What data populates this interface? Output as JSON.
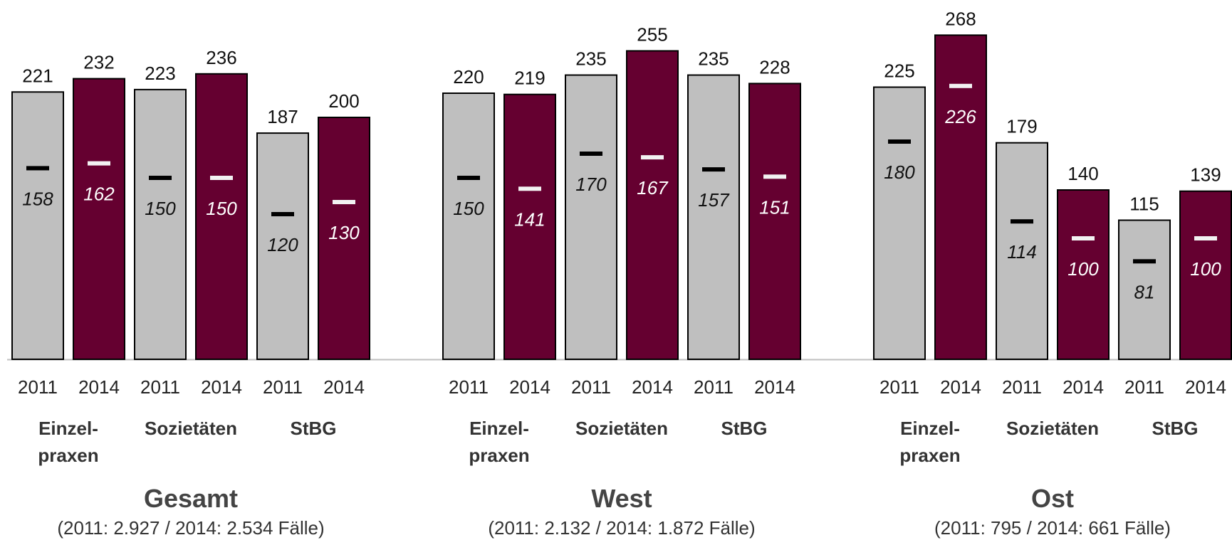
{
  "colors": {
    "y2011": "#bfbfbf",
    "y2014": "#650030",
    "marker_on_2011": "#000000",
    "marker_on_2014": "#f2f2f2",
    "bar_outline": "#000000",
    "baseline": "#bfbfbf"
  },
  "chart_data": {
    "type": "bar",
    "ylim": [
      0,
      280
    ],
    "grid": false,
    "legend": "none",
    "note": "Bar height = printed total value; horizontal dash with italic label = second printed value inside each bar",
    "panels": [
      {
        "title": "Gesamt",
        "subtitle": "(2011: 2.927 / 2014: 2.534 Fälle)",
        "groups": [
          {
            "label": [
              "Einzel-",
              "praxen"
            ],
            "bars": [
              {
                "year": "2011",
                "value": 221,
                "inner": 158
              },
              {
                "year": "2014",
                "value": 232,
                "inner": 162
              }
            ]
          },
          {
            "label": [
              "Sozietäten"
            ],
            "bars": [
              {
                "year": "2011",
                "value": 223,
                "inner": 150
              },
              {
                "year": "2014",
                "value": 236,
                "inner": 150
              }
            ]
          },
          {
            "label": [
              "StBG"
            ],
            "bars": [
              {
                "year": "2011",
                "value": 187,
                "inner": 120
              },
              {
                "year": "2014",
                "value": 200,
                "inner": 130
              }
            ]
          }
        ]
      },
      {
        "title": "West",
        "subtitle": "(2011: 2.132 / 2014: 1.872 Fälle)",
        "groups": [
          {
            "label": [
              "Einzel-",
              "praxen"
            ],
            "bars": [
              {
                "year": "2011",
                "value": 220,
                "inner": 150
              },
              {
                "year": "2014",
                "value": 219,
                "inner": 141
              }
            ]
          },
          {
            "label": [
              "Sozietäten"
            ],
            "bars": [
              {
                "year": "2011",
                "value": 235,
                "inner": 170
              },
              {
                "year": "2014",
                "value": 255,
                "inner": 167
              }
            ]
          },
          {
            "label": [
              "StBG"
            ],
            "bars": [
              {
                "year": "2011",
                "value": 235,
                "inner": 157
              },
              {
                "year": "2014",
                "value": 228,
                "inner": 151
              }
            ]
          }
        ]
      },
      {
        "title": "Ost",
        "subtitle": "(2011: 795 / 2014: 661 Fälle)",
        "groups": [
          {
            "label": [
              "Einzel-",
              "praxen"
            ],
            "bars": [
              {
                "year": "2011",
                "value": 225,
                "inner": 180
              },
              {
                "year": "2014",
                "value": 268,
                "inner": 226
              }
            ]
          },
          {
            "label": [
              "Sozietäten"
            ],
            "bars": [
              {
                "year": "2011",
                "value": 179,
                "inner": 114
              },
              {
                "year": "2014",
                "value": 140,
                "inner": 100
              }
            ]
          },
          {
            "label": [
              "StBG"
            ],
            "bars": [
              {
                "year": "2011",
                "value": 115,
                "inner": 81
              },
              {
                "year": "2014",
                "value": 139,
                "inner": 100
              }
            ]
          }
        ]
      }
    ]
  }
}
